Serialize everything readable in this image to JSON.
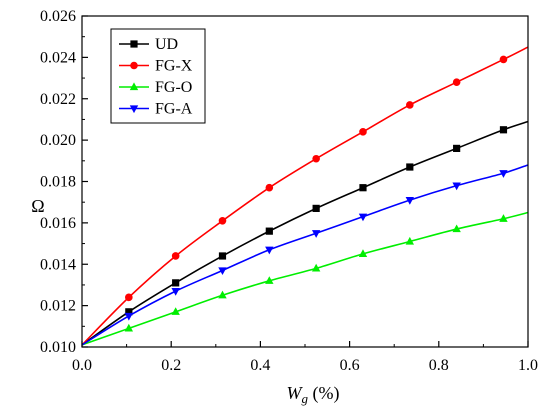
{
  "chart_data": {
    "type": "line",
    "title": "",
    "xlabel_main": "W",
    "xlabel_sub": "g",
    "xlabel_unit": " (%)",
    "ylabel": "Ω",
    "xlim": [
      0.0,
      1.0
    ],
    "ylim": [
      0.01,
      0.026
    ],
    "x_ticks": [
      0.0,
      0.2,
      0.4,
      0.6,
      0.8,
      1.0
    ],
    "x_tick_labels": [
      "0.0",
      "0.2",
      "0.4",
      "0.6",
      "0.8",
      "1.0"
    ],
    "y_ticks": [
      0.01,
      0.012,
      0.014,
      0.016,
      0.018,
      0.02,
      0.022,
      0.024,
      0.026
    ],
    "y_tick_labels": [
      "0.010",
      "0.012",
      "0.014",
      "0.016",
      "0.018",
      "0.020",
      "0.022",
      "0.024",
      "0.026"
    ],
    "grid": false,
    "legend_position": "top-left",
    "x": [
      0.0,
      0.105,
      0.21,
      0.315,
      0.42,
      0.525,
      0.63,
      0.735,
      0.84,
      0.945,
      1.0
    ],
    "series": [
      {
        "name": "UD",
        "color": "#000000",
        "marker": "square",
        "values": [
          0.0101,
          0.0117,
          0.0131,
          0.0144,
          0.0156,
          0.0167,
          0.0177,
          0.0187,
          0.0196,
          0.0205,
          0.0209
        ]
      },
      {
        "name": "FG-X",
        "color": "#ff0000",
        "marker": "circle",
        "values": [
          0.0101,
          0.0124,
          0.0144,
          0.0161,
          0.0177,
          0.0191,
          0.0204,
          0.0217,
          0.0228,
          0.0239,
          0.0245
        ]
      },
      {
        "name": "FG-O",
        "color": "#00ee00",
        "marker": "triangle-up",
        "values": [
          0.0101,
          0.0109,
          0.0117,
          0.0125,
          0.0132,
          0.0138,
          0.0145,
          0.0151,
          0.0157,
          0.0162,
          0.0165
        ]
      },
      {
        "name": "FG-A",
        "color": "#0000ff",
        "marker": "triangle-down",
        "values": [
          0.0101,
          0.0115,
          0.0127,
          0.0137,
          0.0147,
          0.0155,
          0.0163,
          0.0171,
          0.0178,
          0.0184,
          0.0188
        ]
      }
    ]
  }
}
